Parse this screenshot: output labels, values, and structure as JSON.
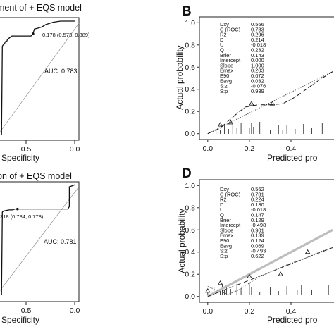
{
  "chart_data": [
    {
      "type": "line",
      "panel": "A",
      "title": "ment of + EQS model",
      "xlabel": "Specificity",
      "x_ticks": [
        "0.5",
        "0.0"
      ],
      "xlim": [
        1.05,
        -0.05
      ],
      "ylim": [
        0,
        1
      ],
      "series": [
        {
          "x": [
            1.0,
            0.99,
            0.98,
            0.96,
            0.95,
            0.93,
            0.92,
            0.9,
            0.88,
            0.86,
            0.84,
            0.8,
            0.76,
            0.7,
            0.64,
            0.6,
            0.573,
            0.555,
            0.5,
            0.45,
            0.4,
            0.35,
            0.3,
            0.2,
            0.1,
            0.05,
            0.0
          ],
          "y": [
            0.0,
            0.78,
            0.79,
            0.8,
            0.82,
            0.82,
            0.84,
            0.85,
            0.86,
            0.87,
            0.87,
            0.87,
            0.87,
            0.87,
            0.87,
            0.87,
            0.889,
            0.93,
            0.94,
            0.95,
            0.97,
            0.98,
            0.99,
            1.0,
            1.0,
            1.0,
            1.0
          ]
        }
      ],
      "annotations": {
        "best_point_label": "0.178 (0.573, 0.889)",
        "best_point": [
          0.573,
          0.889
        ],
        "auc_label": "AUC: 0.783"
      }
    },
    {
      "type": "line",
      "panel": "B",
      "xlabel": "Predicted pro",
      "ylabel": "Actual probability",
      "x_ticks": [
        "0.0",
        "0.2",
        "0.4"
      ],
      "y_ticks": [
        "0.0",
        "0.2",
        "0.4",
        "0.6",
        "0.8",
        "1.0"
      ],
      "xlim": [
        -0.04,
        0.62
      ],
      "ylim": [
        -0.04,
        1.04
      ],
      "stats": [
        {
          "name": "Dxy",
          "value": "0.566"
        },
        {
          "name": "C (ROC)",
          "value": "0.783"
        },
        {
          "name": "R2",
          "value": "0.296"
        },
        {
          "name": "D",
          "value": "0.214"
        },
        {
          "name": "U",
          "value": "-0.018"
        },
        {
          "name": "Q",
          "value": "0.232"
        },
        {
          "name": "Brier",
          "value": "0.143"
        },
        {
          "name": "Intercept",
          "value": "0.000"
        },
        {
          "name": "Slope",
          "value": "1.000"
        },
        {
          "name": "Emax",
          "value": "0.203"
        },
        {
          "name": "E90",
          "value": "0.072"
        },
        {
          "name": "Eavg",
          "value": "0.032"
        },
        {
          "name": "S:z",
          "value": "-0.076"
        },
        {
          "name": "S:p",
          "value": "0.939"
        }
      ],
      "series": [
        {
          "x": [
            0.0,
            0.6
          ],
          "y": [
            0.0,
            0.56
          ]
        },
        {
          "x": [
            0.0,
            0.06,
            0.12,
            0.18,
            0.24,
            0.3,
            0.36,
            0.42,
            0.48,
            0.54,
            0.6
          ],
          "y": [
            0.0,
            0.05,
            0.15,
            0.24,
            0.26,
            0.26,
            0.27,
            0.33,
            0.41,
            0.49,
            0.56
          ]
        }
      ],
      "points": {
        "x": [
          0.06,
          0.11,
          0.21,
          0.31
        ],
        "y": [
          0.08,
          0.1,
          0.27,
          0.27
        ]
      },
      "rug": [
        0.04,
        0.05,
        0.06,
        0.08,
        0.1,
        0.12,
        0.14,
        0.16,
        0.2,
        0.21,
        0.22,
        0.25,
        0.28,
        0.3,
        0.34,
        0.36,
        0.38,
        0.42,
        0.46,
        0.5,
        0.55
      ]
    },
    {
      "type": "line",
      "panel": "C",
      "title": "on of + EQS model",
      "xlabel": "Specificity",
      "x_ticks": [
        "0.5",
        "0.0"
      ],
      "xlim": [
        1.05,
        -0.05
      ],
      "ylim": [
        0,
        1
      ],
      "series": [
        {
          "x": [
            1.0,
            0.99,
            0.97,
            0.9,
            0.85,
            0.82,
            0.784,
            0.7,
            0.6,
            0.5,
            0.4,
            0.3,
            0.2,
            0.1,
            0.08,
            0.08,
            0.04,
            0.0
          ],
          "y": [
            0.0,
            0.75,
            0.76,
            0.77,
            0.77,
            0.778,
            0.778,
            0.778,
            0.778,
            0.778,
            0.778,
            0.778,
            0.778,
            0.778,
            0.8,
            0.98,
            0.99,
            1.0
          ]
        }
      ],
      "annotations": {
        "best_point_label": ".318 (0.784, 0.778)",
        "best_point": [
          0.784,
          0.778
        ],
        "auc_label": "AUC: 0.781"
      }
    },
    {
      "type": "line",
      "panel": "D",
      "xlabel": "Predicted pro",
      "ylabel": "Actual probability",
      "x_ticks": [
        "0.0",
        "0.2",
        "0.4"
      ],
      "y_ticks": [
        "0.0",
        "0.2",
        "0.4",
        "0.6",
        "0.8",
        "1.0"
      ],
      "xlim": [
        -0.04,
        0.62
      ],
      "ylim": [
        -0.04,
        1.04
      ],
      "stats": [
        {
          "name": "Dxy",
          "value": "0.562"
        },
        {
          "name": "C (ROC)",
          "value": "0.781"
        },
        {
          "name": "R2",
          "value": "0.224"
        },
        {
          "name": "D",
          "value": "0.130"
        },
        {
          "name": "U",
          "value": "-0.018"
        },
        {
          "name": "Q",
          "value": "0.147"
        },
        {
          "name": "Brier",
          "value": "0.129"
        },
        {
          "name": "Intercept",
          "value": "-0.498"
        },
        {
          "name": "Slope",
          "value": "0.901"
        },
        {
          "name": "Emax",
          "value": "0.139"
        },
        {
          "name": "E90",
          "value": "0.124"
        },
        {
          "name": "Eavg",
          "value": "0.069"
        },
        {
          "name": "S:z",
          "value": "-0.493"
        },
        {
          "name": "S:p",
          "value": "0.622"
        }
      ],
      "series": [
        {
          "x": [
            0.0,
            0.6
          ],
          "y": [
            0.0,
            0.6
          ]
        },
        {
          "x": [
            0.0,
            0.6
          ],
          "y": [
            0.0,
            0.44
          ]
        },
        {
          "x": [
            0.0,
            0.05,
            0.1,
            0.15,
            0.2,
            0.25,
            0.3,
            0.35,
            0.4,
            0.45,
            0.5,
            0.55,
            0.6
          ],
          "y": [
            0.09,
            0.05,
            0.02,
            0.06,
            0.12,
            0.18,
            0.22,
            0.26,
            0.3,
            0.33,
            0.37,
            0.41,
            0.44
          ]
        }
      ],
      "points": {
        "x": [
          0.0,
          0.06,
          0.2,
          0.35,
          0.48
        ],
        "y": [
          0.05,
          0.12,
          0.18,
          0.2,
          0.4
        ]
      },
      "rug": [
        0.0,
        0.03,
        0.04,
        0.05,
        0.06,
        0.07,
        0.08,
        0.09,
        0.11,
        0.14,
        0.16,
        0.2,
        0.21,
        0.25,
        0.3,
        0.34,
        0.38,
        0.43,
        0.45,
        0.5,
        0.58
      ]
    }
  ]
}
